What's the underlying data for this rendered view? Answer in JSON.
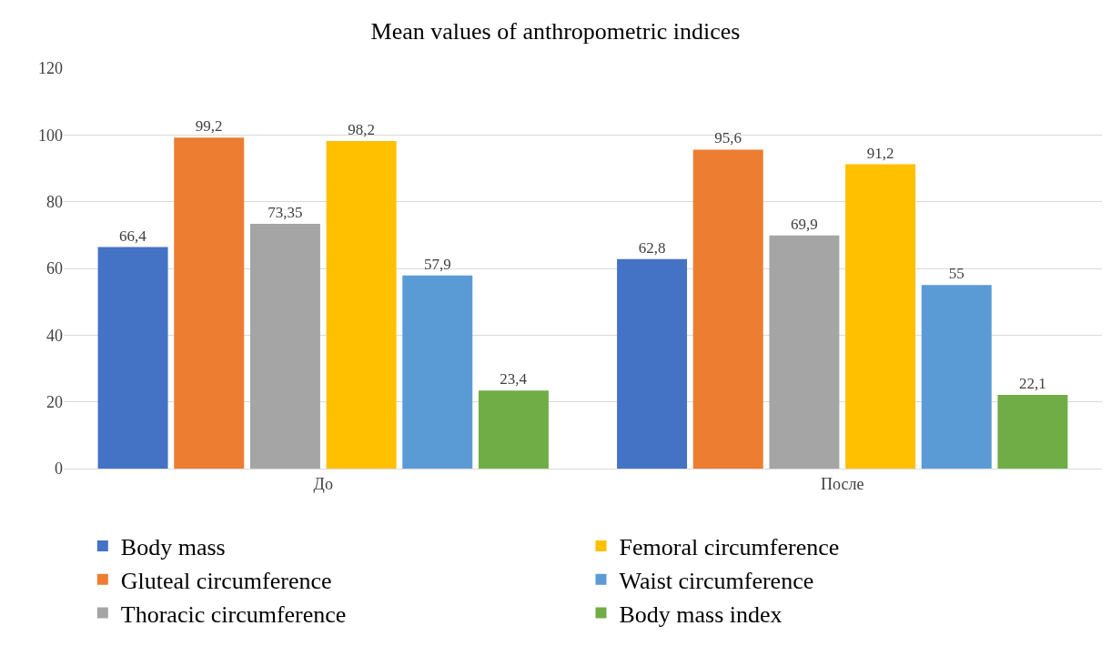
{
  "chart_data": {
    "type": "bar",
    "title": "Mean values of anthropometric indices",
    "categories": [
      "До",
      "После"
    ],
    "series": [
      {
        "name": "Body mass",
        "color": "#4472c4",
        "values": [
          66.4,
          62.8
        ],
        "value_labels": [
          "66,4",
          "62,8"
        ]
      },
      {
        "name": "Gluteal circumference",
        "color": "#ed7d31",
        "values": [
          99.2,
          95.6
        ],
        "value_labels": [
          "99,2",
          "95,6"
        ]
      },
      {
        "name": "Thoracic circumference",
        "color": "#a5a5a5",
        "values": [
          73.35,
          69.9
        ],
        "value_labels": [
          "73,35",
          "69,9"
        ]
      },
      {
        "name": "Femoral circumference",
        "color": "#ffc000",
        "values": [
          98.2,
          91.2
        ],
        "value_labels": [
          "98,2",
          "91,2"
        ]
      },
      {
        "name": "Waist circumference",
        "color": "#5b9bd5",
        "values": [
          57.9,
          55
        ],
        "value_labels": [
          "57,9",
          "55"
        ]
      },
      {
        "name": "Body mass index",
        "color": "#70ad47",
        "values": [
          23.4,
          22.1
        ],
        "value_labels": [
          "23,4",
          "22,1"
        ]
      }
    ],
    "ylim": [
      0,
      120
    ],
    "yticks": [
      0,
      20,
      40,
      60,
      80,
      100,
      120
    ],
    "grid": "y",
    "legend": "bottom"
  }
}
